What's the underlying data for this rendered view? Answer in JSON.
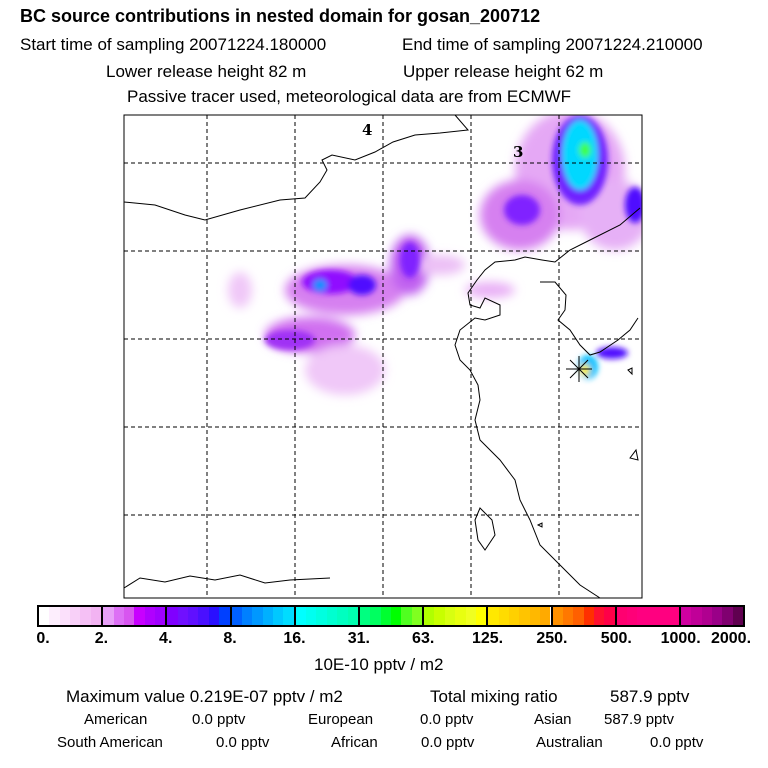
{
  "header": {
    "title": "BC  source contributions in nested domain for gosan_200712",
    "start_time": "Start time of sampling 20071224.180000",
    "end_time": "End time of sampling 20071224.210000",
    "lower_height": "Lower release height   82 m",
    "upper_height": "Upper release height   62 m",
    "tracer_note": "Passive tracer used, meteorological data are from ECMWF"
  },
  "map": {
    "labels": [
      "4",
      "3"
    ],
    "receptor_icon": "star-marker-icon"
  },
  "colorbar": {
    "ticks": [
      "0.",
      "2.",
      "4.",
      "8.",
      "16.",
      "31.",
      "63.",
      "125.",
      "250.",
      "500.",
      "1000.",
      "2000."
    ],
    "unit": "10E-10 pptv / m2",
    "segments": [
      [
        "#ffffff",
        "#fdeefd",
        "#fbe0fb",
        "#f8d0f8",
        "#f5c0f5",
        "#f2b3f2"
      ],
      [
        "#e8a0f8",
        "#dd70f5",
        "#d855f0",
        "#c800ff",
        "#b000ff",
        "#a000ff"
      ],
      [
        "#8000ff",
        "#7010ff",
        "#6010ff",
        "#4a10ff",
        "#2a10ff",
        "#0040ff"
      ],
      [
        "#0060ff",
        "#0080ff",
        "#0098ff",
        "#00b0ff",
        "#00c8ff",
        "#00dcff"
      ],
      [
        "#00ffff",
        "#00fff0",
        "#00ffe0",
        "#00ffd0",
        "#00ffc0",
        "#00ffb0"
      ],
      [
        "#00ff80",
        "#00ff60",
        "#00ff30",
        "#00ff00",
        "#50ff20",
        "#80ff20"
      ],
      [
        "#b0ff00",
        "#c8ff00",
        "#d8ff10",
        "#e8ff10",
        "#f0ff20",
        "#ffff00"
      ],
      [
        "#ffe800",
        "#ffdc00",
        "#ffd000",
        "#ffc400",
        "#ffb800",
        "#ffaa00"
      ],
      [
        "#ff9000",
        "#ff7800",
        "#ff6000",
        "#ff3000",
        "#ff1030",
        "#ff0048"
      ],
      [
        "#ff0070",
        "#ff0078",
        "#ff0080",
        "#ff0080",
        "#ff0080",
        "#ff0080"
      ],
      [
        "#d000a0",
        "#c00098",
        "#b00090",
        "#9a0088",
        "#800070",
        "#600050"
      ]
    ]
  },
  "footer": {
    "max_label": "Maximum value  0.219E-07 pptv / m2",
    "total_label": "Total mixing ratio",
    "total_value": "587.9 pptv",
    "american_label": "American",
    "american_value": "0.0 pptv",
    "european_label": "European",
    "european_value": "0.0 pptv",
    "asian_label": "Asian",
    "asian_value": "587.9 pptv",
    "south_american_label": "South American",
    "south_american_value": "0.0 pptv",
    "african_label": "African",
    "african_value": "0.0 pptv",
    "australian_label": "Australian",
    "australian_value": "0.0 pptv"
  }
}
